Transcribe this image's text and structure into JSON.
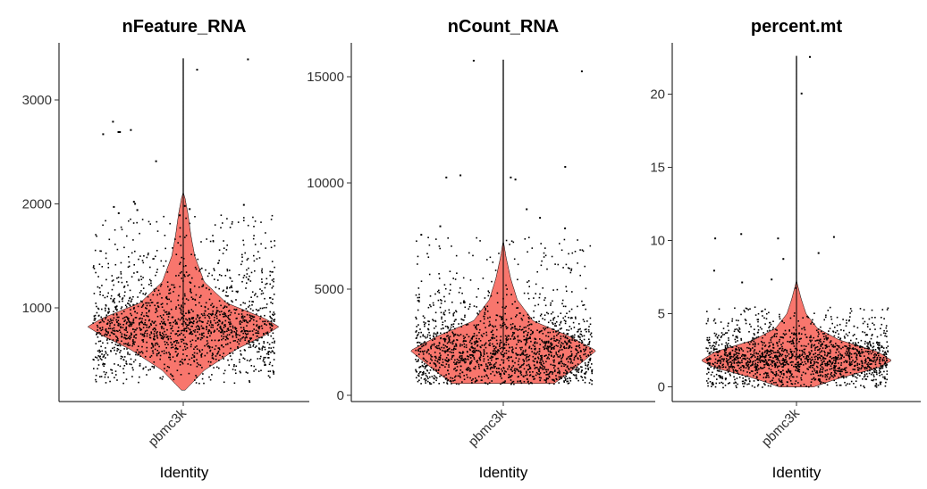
{
  "chart_data": [
    {
      "type": "violin",
      "title": "nFeature_RNA",
      "xlabel": "Identity",
      "category": "pbmc3k",
      "ylim": [
        100,
        3550
      ],
      "yticks": [
        1000,
        2000,
        3000
      ],
      "fill": "#F8766D",
      "max": 3400,
      "min": 210,
      "mode": 820,
      "density_profile": [
        [
          210,
          0.02
        ],
        [
          400,
          0.22
        ],
        [
          600,
          0.55
        ],
        [
          750,
          0.88
        ],
        [
          820,
          1.0
        ],
        [
          900,
          0.85
        ],
        [
          1050,
          0.45
        ],
        [
          1250,
          0.22
        ],
        [
          1500,
          0.12
        ],
        [
          1700,
          0.08
        ],
        [
          1900,
          0.05
        ],
        [
          2050,
          0.02
        ],
        [
          2100,
          0.004
        ],
        [
          3400,
          0.004
        ]
      ],
      "scatter_range": [
        280,
        1900
      ],
      "outliers": [
        3300,
        3400,
        2800,
        2720,
        2700,
        2700,
        2680,
        2420,
        2030,
        2010,
        1990,
        1980,
        1960,
        1950,
        2000,
        1920,
        1900
      ]
    },
    {
      "type": "violin",
      "title": "nCount_RNA",
      "xlabel": "Identity",
      "category": "pbmc3k",
      "ylim": [
        -300,
        16600
      ],
      "yticks": [
        0,
        5000,
        10000,
        15000
      ],
      "fill": "#F8766D",
      "max": 15800,
      "min": 550,
      "mode": 2100,
      "density_profile": [
        [
          550,
          0.55
        ],
        [
          1200,
          0.75
        ],
        [
          2100,
          1.0
        ],
        [
          2800,
          0.7
        ],
        [
          3500,
          0.32
        ],
        [
          4500,
          0.15
        ],
        [
          5500,
          0.08
        ],
        [
          6500,
          0.03
        ],
        [
          7200,
          0.004
        ],
        [
          15800,
          0.004
        ]
      ],
      "scatter_range": [
        550,
        7500
      ],
      "outliers": [
        15300,
        15800,
        10800,
        10400,
        10300,
        10300,
        10200,
        8800,
        8400,
        8000,
        7900,
        7600
      ]
    },
    {
      "type": "violin",
      "title": "percent.mt",
      "xlabel": "Identity",
      "category": "pbmc3k",
      "ylim": [
        -1,
        23.5
      ],
      "yticks": [
        0,
        5,
        10,
        15,
        20
      ],
      "fill": "#F8766D",
      "max": 22.6,
      "min": 0,
      "mode": 1.8,
      "density_profile": [
        [
          0,
          0.18
        ],
        [
          0.6,
          0.45
        ],
        [
          1.3,
          0.85
        ],
        [
          1.8,
          1.0
        ],
        [
          2.4,
          0.85
        ],
        [
          3.2,
          0.45
        ],
        [
          4.0,
          0.22
        ],
        [
          5.0,
          0.1
        ],
        [
          6.0,
          0.05
        ],
        [
          7.0,
          0.01
        ],
        [
          7.2,
          0.004
        ],
        [
          22.6,
          0.004
        ]
      ],
      "scatter_range": [
        0,
        5.5
      ],
      "outliers": [
        22.6,
        20.1,
        10.5,
        10.3,
        10.2,
        10.2,
        9.2,
        8.8,
        8.0,
        7.4,
        7.2,
        6.8
      ]
    }
  ]
}
